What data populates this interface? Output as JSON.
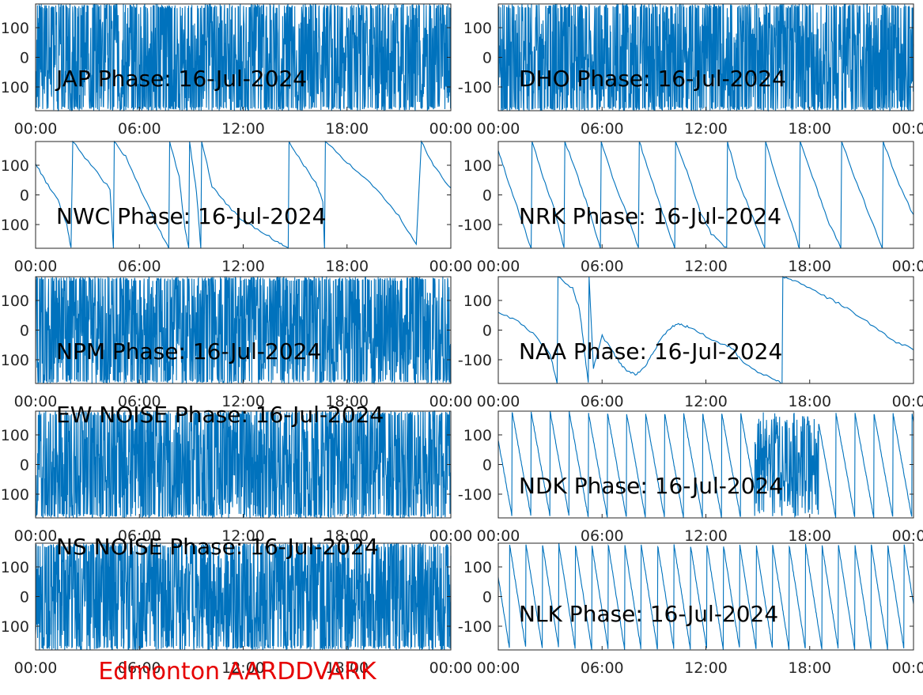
{
  "figure_title": "Edmonton AARDDVARK",
  "colors": {
    "line": "#0072BD",
    "title": "#E60000",
    "axes": "#262626"
  },
  "chart_data": [
    {
      "type": "line",
      "title": "JAP Phase: 16-Jul-2024",
      "x_ticks": [
        "00:00",
        "06:00",
        "12:00",
        "18:00",
        "00:00"
      ],
      "y_ticks": [
        "100",
        "0",
        "-100"
      ],
      "xlim_hours": [
        0,
        24
      ],
      "ylim": [
        -180,
        180
      ],
      "grid": false,
      "series": [
        {
          "style": "noise",
          "amplitude": 180
        }
      ]
    },
    {
      "type": "line",
      "title": "DHO Phase: 16-Jul-2024",
      "x_ticks": [
        "00:00",
        "06:00",
        "12:00",
        "18:00",
        "00:00"
      ],
      "y_ticks": [
        "100",
        "0",
        "-100"
      ],
      "xlim_hours": [
        0,
        24
      ],
      "ylim": [
        -180,
        180
      ],
      "grid": false,
      "series": [
        {
          "style": "noise",
          "amplitude": 180
        }
      ]
    },
    {
      "type": "line",
      "title": "NWC Phase: 16-Jul-2024",
      "x_ticks": [
        "00:00",
        "06:00",
        "12:00",
        "18:00",
        "00:00"
      ],
      "y_ticks": [
        "100",
        "0",
        "-100"
      ],
      "xlim_hours": [
        0,
        24
      ],
      "ylim": [
        -180,
        180
      ],
      "grid": false,
      "series": [
        {
          "style": "wrapped_drift",
          "points": [
            [
              0,
              105
            ],
            [
              0.6,
              45
            ],
            [
              1.3,
              -20
            ],
            [
              1.8,
              -100
            ],
            [
              2.05,
              -180
            ],
            [
              2.15,
              180
            ],
            [
              3.2,
              100
            ],
            [
              4.3,
              20
            ],
            [
              4.5,
              -180
            ],
            [
              4.55,
              180
            ],
            [
              5.2,
              130
            ],
            [
              6.3,
              -10
            ],
            [
              7.0,
              -100
            ],
            [
              7.7,
              -180
            ],
            [
              7.75,
              180
            ],
            [
              8.3,
              60
            ],
            [
              8.6,
              -100
            ],
            [
              8.85,
              -180
            ],
            [
              8.9,
              180
            ],
            [
              9.3,
              10
            ],
            [
              9.55,
              -180
            ],
            [
              9.6,
              180
            ],
            [
              10.2,
              30
            ],
            [
              11.0,
              -30
            ],
            [
              12.0,
              -90
            ],
            [
              13.0,
              -120
            ],
            [
              14.0,
              -160
            ],
            [
              14.6,
              -180
            ],
            [
              14.65,
              180
            ],
            [
              15.5,
              100
            ],
            [
              16.2,
              40
            ],
            [
              16.6,
              -20
            ],
            [
              16.7,
              -180
            ],
            [
              16.75,
              180
            ],
            [
              18.0,
              110
            ],
            [
              19.0,
              60
            ],
            [
              20.0,
              0
            ],
            [
              21.0,
              -70
            ],
            [
              22.0,
              -170
            ],
            [
              22.3,
              180
            ],
            [
              23.0,
              100
            ],
            [
              24.0,
              20
            ]
          ]
        }
      ]
    },
    {
      "type": "line",
      "title": "NRK Phase: 16-Jul-2024",
      "x_ticks": [
        "00:00",
        "06:00",
        "12:00",
        "18:00",
        "00:00"
      ],
      "y_ticks": [
        "100",
        "0",
        "-100"
      ],
      "xlim_hours": [
        0,
        24
      ],
      "ylim": [
        -180,
        180
      ],
      "grid": false,
      "series": [
        {
          "style": "wrapped_drift",
          "points": [
            [
              0,
              150
            ],
            [
              0.5,
              60
            ],
            [
              1.2,
              -60
            ],
            [
              1.9,
              -180
            ],
            [
              1.95,
              180
            ],
            [
              2.6,
              60
            ],
            [
              3.3,
              -60
            ],
            [
              3.8,
              -180
            ],
            [
              3.85,
              180
            ],
            [
              4.6,
              60
            ],
            [
              5.3,
              -60
            ],
            [
              5.9,
              -180
            ],
            [
              5.95,
              180
            ],
            [
              6.6,
              60
            ],
            [
              7.4,
              -60
            ],
            [
              8.1,
              -180
            ],
            [
              8.15,
              180
            ],
            [
              8.7,
              80
            ],
            [
              9.5,
              -60
            ],
            [
              10.2,
              -180
            ],
            [
              10.25,
              180
            ],
            [
              10.9,
              80
            ],
            [
              11.7,
              -60
            ],
            [
              12.3,
              -130
            ],
            [
              13.2,
              -180
            ],
            [
              13.25,
              180
            ],
            [
              13.8,
              60
            ],
            [
              14.6,
              -60
            ],
            [
              15.4,
              -180
            ],
            [
              15.45,
              180
            ],
            [
              16.2,
              30
            ],
            [
              17.1,
              -120
            ],
            [
              17.4,
              -180
            ],
            [
              17.45,
              180
            ],
            [
              18.3,
              40
            ],
            [
              19.0,
              -80
            ],
            [
              19.8,
              -180
            ],
            [
              19.85,
              180
            ],
            [
              20.6,
              60
            ],
            [
              21.4,
              -60
            ],
            [
              22.2,
              -180
            ],
            [
              22.25,
              180
            ],
            [
              23.0,
              60
            ],
            [
              24.0,
              -70
            ]
          ]
        }
      ]
    },
    {
      "type": "line",
      "title": "NPM Phase: 16-Jul-2024",
      "x_ticks": [
        "00:00",
        "06:00",
        "12:00",
        "18:00",
        "00:00"
      ],
      "y_ticks": [
        "100",
        "0",
        "-100"
      ],
      "xlim_hours": [
        0,
        24
      ],
      "ylim": [
        -180,
        180
      ],
      "grid": false,
      "series": [
        {
          "style": "noise",
          "amplitude": 180
        }
      ]
    },
    {
      "type": "line",
      "title": "NAA Phase: 16-Jul-2024",
      "x_ticks": [
        "00:00",
        "06:00",
        "12:00",
        "18:00",
        "00:00"
      ],
      "y_ticks": [
        "100",
        "0",
        "-100"
      ],
      "xlim_hours": [
        0,
        24
      ],
      "ylim": [
        -180,
        180
      ],
      "grid": false,
      "series": [
        {
          "style": "wrapped_drift",
          "points": [
            [
              0,
              60
            ],
            [
              1.0,
              35
            ],
            [
              2.0,
              -10
            ],
            [
              3.0,
              -80
            ],
            [
              3.4,
              -180
            ],
            [
              3.45,
              180
            ],
            [
              4.3,
              140
            ],
            [
              4.7,
              70
            ],
            [
              5.0,
              -80
            ],
            [
              5.2,
              -180
            ],
            [
              5.25,
              180
            ],
            [
              5.5,
              -130
            ],
            [
              6.0,
              -20
            ],
            [
              6.5,
              -60
            ],
            [
              7.0,
              -110
            ],
            [
              7.5,
              -140
            ],
            [
              8.0,
              -150
            ],
            [
              8.5,
              -120
            ],
            [
              9.0,
              -70
            ],
            [
              9.5,
              -20
            ],
            [
              10.0,
              10
            ],
            [
              10.5,
              20
            ],
            [
              11.0,
              10
            ],
            [
              12.0,
              -20
            ],
            [
              13.0,
              -50
            ],
            [
              13.5,
              -60
            ],
            [
              14.0,
              -100
            ],
            [
              15.0,
              -140
            ],
            [
              16.0,
              -170
            ],
            [
              16.4,
              -180
            ],
            [
              16.45,
              180
            ],
            [
              17.0,
              170
            ],
            [
              18.0,
              140
            ],
            [
              19.0,
              110
            ],
            [
              20.0,
              80
            ],
            [
              21.0,
              40
            ],
            [
              22.0,
              0
            ],
            [
              23.0,
              -40
            ],
            [
              24.0,
              -65
            ]
          ]
        }
      ]
    },
    {
      "type": "line",
      "title": "EW NOISE Phase: 16-Jul-2024",
      "x_ticks": [
        "00:00",
        "06:00",
        "12:00",
        "18:00",
        "00:00"
      ],
      "y_ticks": [
        "100",
        "0",
        "-100"
      ],
      "xlim_hours": [
        0,
        24
      ],
      "ylim": [
        -180,
        180
      ],
      "grid": false,
      "series": [
        {
          "style": "noise",
          "amplitude": 180
        }
      ]
    },
    {
      "type": "line",
      "title": "NDK Phase: 16-Jul-2024",
      "x_ticks": [
        "00:00",
        "06:00",
        "12:00",
        "18:00",
        "00:00"
      ],
      "y_ticks": [
        "100",
        "0",
        "-100"
      ],
      "xlim_hours": [
        0,
        24
      ],
      "ylim": [
        -180,
        180
      ],
      "grid": false,
      "series": [
        {
          "style": "sawtooth",
          "period_hours": 1.1,
          "noise_from": 14.8,
          "noise_to": 18.5
        }
      ]
    },
    {
      "type": "line",
      "title": "NS NOISE Phase: 16-Jul-2024",
      "x_ticks": [
        "00:00",
        "06:00",
        "12:00",
        "18:00",
        "00:00"
      ],
      "y_ticks": [
        "100",
        "0",
        "-100"
      ],
      "xlim_hours": [
        0,
        24
      ],
      "ylim": [
        -180,
        180
      ],
      "grid": false,
      "series": [
        {
          "style": "noise",
          "amplitude": 180
        }
      ]
    },
    {
      "type": "line",
      "title": "NLK Phase: 16-Jul-2024",
      "x_ticks": [
        "00:00",
        "06:00",
        "12:00",
        "18:00",
        "00:00"
      ],
      "y_ticks": [
        "100",
        "0",
        "-100"
      ],
      "xlim_hours": [
        0,
        24
      ],
      "ylim": [
        -180,
        180
      ],
      "grid": false,
      "series": [
        {
          "style": "sawtooth",
          "period_hours": 0.95,
          "noise_from": null,
          "noise_to": null
        }
      ]
    }
  ]
}
